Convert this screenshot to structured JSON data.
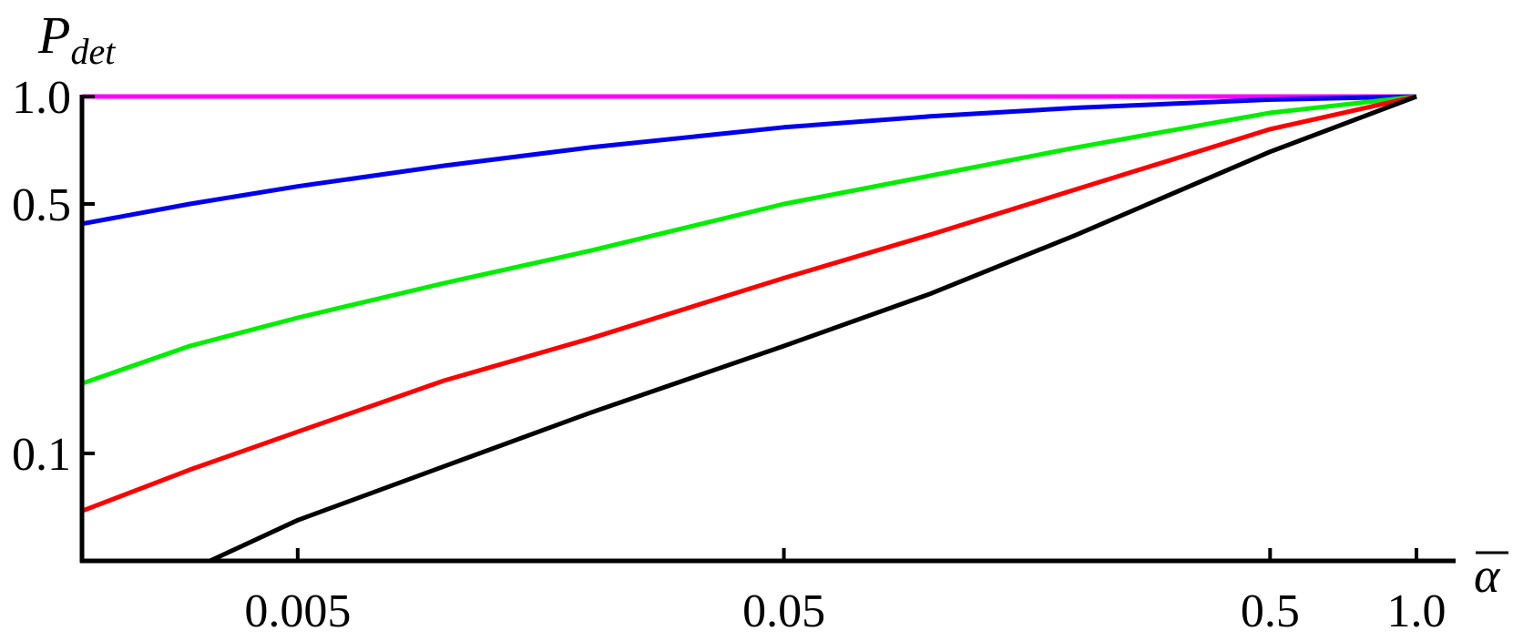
{
  "chart_data": {
    "type": "line",
    "title": "",
    "xlabel": "α",
    "ylabel": "P",
    "ylabel_subscript": "det",
    "x_scale": "log",
    "y_scale": "log",
    "xlim": [
      0.0018,
      1.1
    ],
    "ylim": [
      0.05,
      1.0
    ],
    "grid": false,
    "legend": "none",
    "x_ticks": [
      {
        "value": 0.005,
        "label": "0.005"
      },
      {
        "value": 0.05,
        "label": "0.05"
      },
      {
        "value": 0.5,
        "label": "0.5"
      },
      {
        "value": 1.0,
        "label": "1.0"
      }
    ],
    "y_ticks": [
      {
        "value": 0.1,
        "label": "0.1"
      },
      {
        "value": 0.5,
        "label": "0.5"
      },
      {
        "value": 1.0,
        "label": "1.0"
      }
    ],
    "series": [
      {
        "color": "#ff00ff",
        "x": [
          0.0018,
          0.01,
          0.1,
          1.0
        ],
        "y": [
          1.0,
          1.0,
          1.0,
          1.0
        ]
      },
      {
        "color": "#0000ee",
        "x": [
          0.0018,
          0.003,
          0.005,
          0.01,
          0.02,
          0.05,
          0.1,
          0.2,
          0.5,
          1.0
        ],
        "y": [
          0.44,
          0.5,
          0.56,
          0.64,
          0.72,
          0.82,
          0.88,
          0.93,
          0.98,
          1.0
        ]
      },
      {
        "color": "#00ee00",
        "x": [
          0.0018,
          0.003,
          0.005,
          0.01,
          0.02,
          0.05,
          0.1,
          0.2,
          0.5,
          1.0
        ],
        "y": [
          0.157,
          0.2,
          0.24,
          0.3,
          0.37,
          0.5,
          0.6,
          0.72,
          0.9,
          1.0
        ]
      },
      {
        "color": "#ff0000",
        "x": [
          0.0018,
          0.003,
          0.005,
          0.01,
          0.02,
          0.05,
          0.1,
          0.2,
          0.5,
          1.0
        ],
        "y": [
          0.069,
          0.09,
          0.115,
          0.16,
          0.21,
          0.31,
          0.41,
          0.55,
          0.81,
          1.0
        ]
      },
      {
        "color": "#000000",
        "x": [
          0.0033,
          0.005,
          0.01,
          0.02,
          0.05,
          0.1,
          0.2,
          0.5,
          1.0
        ],
        "y": [
          0.05,
          0.065,
          0.092,
          0.13,
          0.2,
          0.28,
          0.41,
          0.7,
          1.0
        ]
      }
    ]
  }
}
